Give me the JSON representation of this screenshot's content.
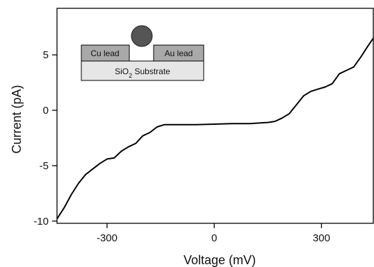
{
  "chart_data": {
    "type": "line",
    "title": "",
    "xlabel": "Voltage (mV)",
    "ylabel": "Current (pA)",
    "xlim": [
      -440,
      445
    ],
    "ylim": [
      -10.2,
      9.2
    ],
    "x_ticks": [
      -300,
      0,
      300
    ],
    "x_tick_labels": [
      "-300",
      "0",
      "300"
    ],
    "y_ticks": [
      -10,
      -5,
      0,
      5
    ],
    "y_tick_labels": [
      "-10",
      "-5",
      "0",
      "5"
    ],
    "grid": false,
    "legend": "none",
    "line_color": "#000000",
    "series": [
      {
        "x": [
          -440,
          -420,
          -400,
          -380,
          -360,
          -340,
          -320,
          -300,
          -280,
          -260,
          -240,
          -220,
          -200,
          -180,
          -160,
          -140,
          -120,
          -100,
          -50,
          0,
          50,
          100,
          150,
          170,
          190,
          210,
          230,
          250,
          270,
          290,
          310,
          330,
          350,
          370,
          390,
          410,
          430,
          445
        ],
        "y": [
          -9.8,
          -8.8,
          -7.6,
          -6.6,
          -5.8,
          -5.3,
          -4.8,
          -4.4,
          -4.3,
          -3.7,
          -3.3,
          -3.0,
          -2.3,
          -2.0,
          -1.5,
          -1.3,
          -1.3,
          -1.3,
          -1.3,
          -1.25,
          -1.2,
          -1.2,
          -1.1,
          -1.0,
          -0.7,
          -0.3,
          0.5,
          1.3,
          1.7,
          1.9,
          2.1,
          2.4,
          3.3,
          3.6,
          3.9,
          4.8,
          5.8,
          6.5
        ]
      }
    ]
  },
  "inset": {
    "left_lead": "Cu lead",
    "right_lead": "Au lead",
    "substrate_main": "SiO",
    "substrate_sub": "2",
    "substrate_rest": " Substrate"
  },
  "colors": {
    "lead_fill": "#a9a9a9",
    "substrate_fill": "#e6e6e6",
    "particle_fill": "#555555"
  }
}
